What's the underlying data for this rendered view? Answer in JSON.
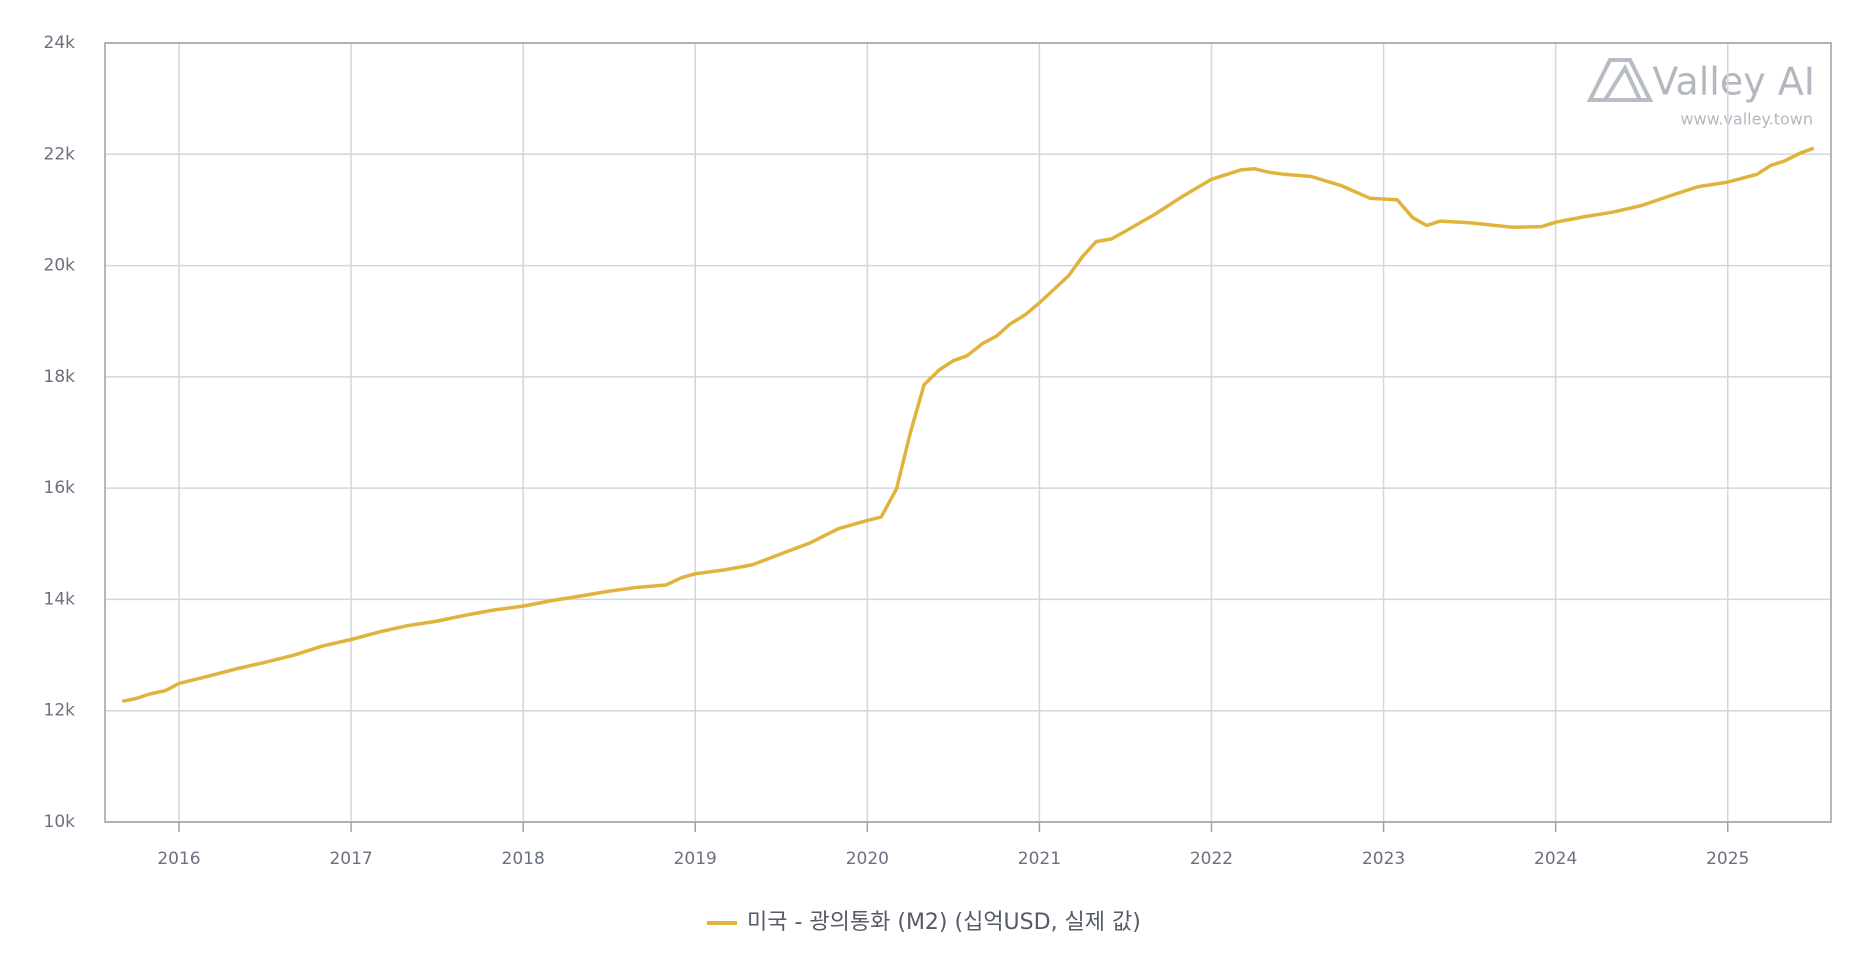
{
  "chart_data": {
    "type": "line",
    "watermark": {
      "brand": "Valley AI",
      "url": "www.valley.town"
    },
    "x": [
      2015.67,
      2015.75,
      2015.83,
      2015.92,
      2016.0,
      2016.17,
      2016.33,
      2016.5,
      2016.67,
      2016.83,
      2017.0,
      2017.17,
      2017.33,
      2017.5,
      2017.67,
      2017.83,
      2018.0,
      2018.17,
      2018.33,
      2018.5,
      2018.67,
      2018.83,
      2018.92,
      2019.0,
      2019.17,
      2019.33,
      2019.5,
      2019.67,
      2019.83,
      2020.0,
      2020.08,
      2020.17,
      2020.25,
      2020.33,
      2020.42,
      2020.5,
      2020.58,
      2020.67,
      2020.75,
      2020.83,
      2020.92,
      2021.0,
      2021.17,
      2021.25,
      2021.33,
      2021.42,
      2021.5,
      2021.67,
      2021.83,
      2022.0,
      2022.17,
      2022.25,
      2022.33,
      2022.42,
      2022.58,
      2022.75,
      2022.92,
      2023.08,
      2023.17,
      2023.25,
      2023.33,
      2023.5,
      2023.75,
      2023.92,
      2024.0,
      2024.17,
      2024.33,
      2024.5,
      2024.67,
      2024.83,
      2025.0,
      2025.17,
      2025.25,
      2025.33,
      2025.42,
      2025.5
    ],
    "series": [
      {
        "name": "미국 - 광의통화 (M2) (십억USD, 실제 값)",
        "color": "#e0b43c",
        "values": [
          12170,
          12220,
          12300,
          12360,
          12490,
          12620,
          12750,
          12870,
          13000,
          13160,
          13280,
          13420,
          13530,
          13610,
          13720,
          13810,
          13880,
          13980,
          14060,
          14150,
          14220,
          14260,
          14390,
          14460,
          14530,
          14620,
          14820,
          15020,
          15270,
          15420,
          15480,
          15990,
          17000,
          17860,
          18130,
          18290,
          18380,
          18600,
          18730,
          18950,
          19120,
          19330,
          19820,
          20160,
          20430,
          20480,
          20620,
          20920,
          21240,
          21550,
          21720,
          21740,
          21680,
          21640,
          21600,
          21440,
          21210,
          21180,
          20860,
          20720,
          20800,
          20770,
          20690,
          20700,
          20780,
          20880,
          20960,
          21080,
          21260,
          21420,
          21500,
          21640,
          21800,
          21880,
          22020,
          22110
        ]
      }
    ],
    "xlim": [
      2015.57,
      2025.6
    ],
    "xticks": [
      2016,
      2017,
      2018,
      2019,
      2020,
      2021,
      2022,
      2023,
      2024,
      2025
    ],
    "ylim": [
      10000,
      24000
    ],
    "yticks": [
      {
        "value": 10000,
        "label": "10k"
      },
      {
        "value": 12000,
        "label": "12k"
      },
      {
        "value": 14000,
        "label": "14k"
      },
      {
        "value": 16000,
        "label": "16k"
      },
      {
        "value": 18000,
        "label": "18k"
      },
      {
        "value": 20000,
        "label": "20k"
      },
      {
        "value": 22000,
        "label": "22k"
      },
      {
        "value": 24000,
        "label": "24k"
      }
    ],
    "grid": true,
    "legend": "bottom"
  }
}
